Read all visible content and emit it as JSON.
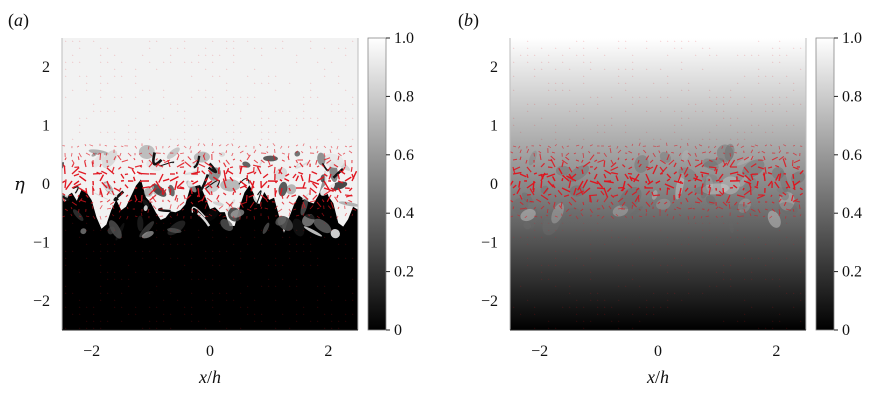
{
  "figure": {
    "panels": [
      {
        "id": "a",
        "label_open": "(",
        "label_letter": "a",
        "label_close": ")",
        "background": "field-black-to-white-at-interface",
        "show_eta": true
      },
      {
        "id": "b",
        "label_open": "(",
        "label_letter": "b",
        "label_close": ")",
        "background": "smooth-linear-gradient",
        "show_eta": false
      }
    ],
    "ylabel": "η",
    "xlabel_x": "x",
    "xlabel_slash": "/",
    "xlabel_h": "h",
    "colors": {
      "vector": "#e0141e",
      "fluid_light": "#f2f2f2",
      "fluid_dark": "#000000"
    }
  },
  "chart_data": [
    {
      "type": "heatmap",
      "title": "",
      "xlabel": "x/h",
      "ylabel": "η",
      "xlim": [
        -2.5,
        2.5
      ],
      "ylim": [
        -2.5,
        2.5
      ],
      "x_ticks": [
        -2,
        0,
        2
      ],
      "x_tick_labels": [
        "−2",
        "0",
        "2"
      ],
      "y_ticks": [
        2,
        1,
        0,
        -1,
        -2
      ],
      "y_tick_labels": [
        "2",
        "1",
        "0",
        "−1",
        "−2"
      ],
      "colorbar": {
        "min": 0,
        "max": 1,
        "ticks": [
          1.0,
          0.8,
          0.6,
          0.4,
          0.2,
          0
        ],
        "tick_labels": [
          "1.0",
          "0.8",
          "0.6",
          "0.4",
          "0.2",
          "0"
        ]
      }
    },
    {
      "type": "heatmap",
      "title": "",
      "xlabel": "x/h",
      "ylabel": "",
      "xlim": [
        -2.5,
        2.5
      ],
      "ylim": [
        -2.5,
        2.5
      ],
      "x_ticks": [
        -2,
        0,
        2
      ],
      "x_tick_labels": [
        "−2",
        "0",
        "2"
      ],
      "y_ticks": [
        2,
        1,
        0,
        -1,
        -2
      ],
      "y_tick_labels": [
        "2",
        "1",
        "0",
        "−1",
        "−2"
      ],
      "colorbar": {
        "min": 0,
        "max": 1,
        "ticks": [
          1.0,
          0.8,
          0.6,
          0.4,
          0.2,
          0
        ],
        "tick_labels": [
          "1.0",
          "0.8",
          "0.6",
          "0.4",
          "0.2",
          "0"
        ]
      }
    }
  ]
}
